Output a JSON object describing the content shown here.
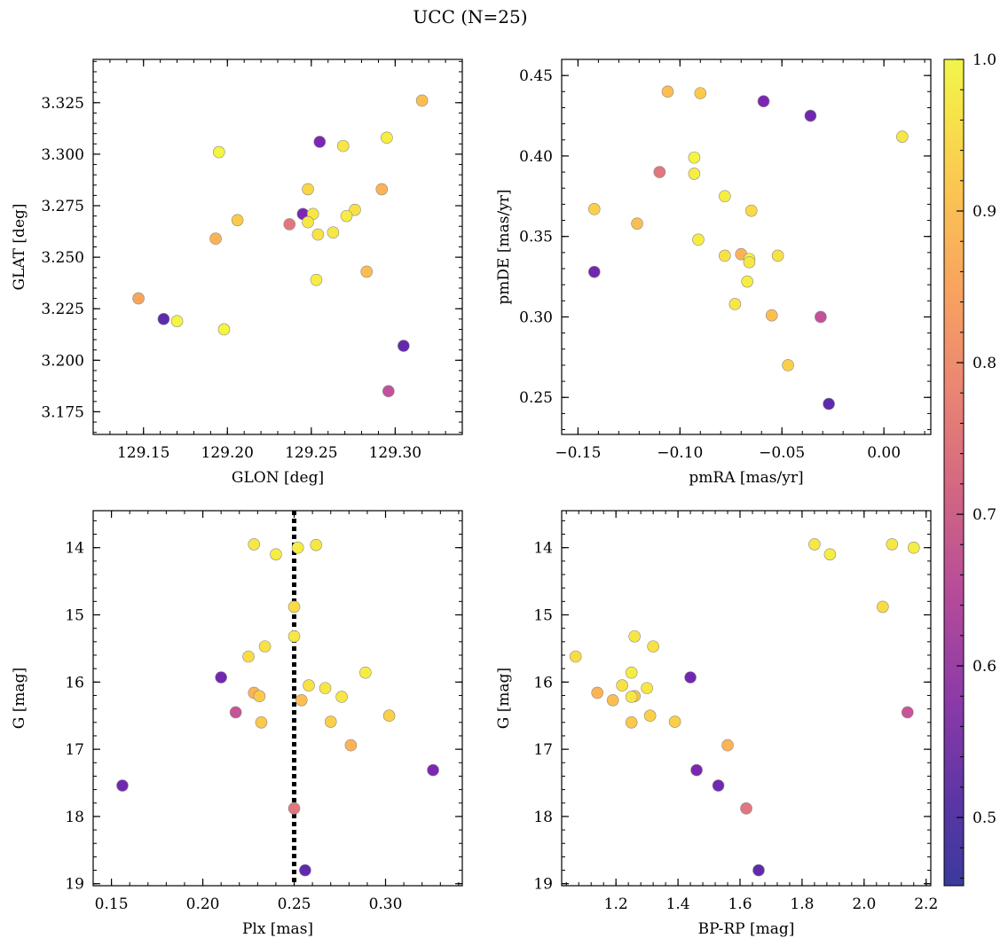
{
  "figure": {
    "title": "UCC (N=25)"
  },
  "colorbar": {
    "colormap": "plasma",
    "range": [
      0.455,
      1.0
    ],
    "ticks": [
      0.5,
      0.6,
      0.7,
      0.8,
      0.9,
      1.0
    ],
    "tick_labels": [
      "0.5",
      "0.6",
      "0.7",
      "0.8",
      "0.9",
      "1.0"
    ]
  },
  "chart_data": [
    {
      "type": "scatter",
      "title": "",
      "xlabel": "GLON [deg]",
      "ylabel": "GLAT [deg]",
      "xlim": [
        129.12,
        129.34
      ],
      "ylim": [
        3.164,
        3.346
      ],
      "y_inverted": false,
      "xticks": [
        129.15,
        129.2,
        129.25,
        129.3
      ],
      "xtick_labels": [
        "129.15",
        "129.20",
        "129.25",
        "129.30"
      ],
      "yticks": [
        3.175,
        3.2,
        3.225,
        3.25,
        3.275,
        3.3,
        3.325
      ],
      "ytick_labels": [
        "3.175",
        "3.200",
        "3.225",
        "3.250",
        "3.275",
        "3.300",
        "3.325"
      ],
      "grid": false,
      "points": [
        {
          "x": 129.316,
          "y": 3.326,
          "c": 0.9
        },
        {
          "x": 129.255,
          "y": 3.306,
          "c": 0.52
        },
        {
          "x": 129.269,
          "y": 3.304,
          "c": 0.97
        },
        {
          "x": 129.295,
          "y": 3.308,
          "c": 0.98
        },
        {
          "x": 129.195,
          "y": 3.301,
          "c": 0.99
        },
        {
          "x": 129.248,
          "y": 3.283,
          "c": 0.94
        },
        {
          "x": 129.292,
          "y": 3.283,
          "c": 0.88
        },
        {
          "x": 129.245,
          "y": 3.271,
          "c": 0.52
        },
        {
          "x": 129.251,
          "y": 3.271,
          "c": 0.97
        },
        {
          "x": 129.276,
          "y": 3.273,
          "c": 0.96
        },
        {
          "x": 129.271,
          "y": 3.27,
          "c": 0.98
        },
        {
          "x": 129.206,
          "y": 3.268,
          "c": 0.92
        },
        {
          "x": 129.248,
          "y": 3.267,
          "c": 0.97
        },
        {
          "x": 129.237,
          "y": 3.266,
          "c": 0.75
        },
        {
          "x": 129.254,
          "y": 3.261,
          "c": 0.96
        },
        {
          "x": 129.263,
          "y": 3.262,
          "c": 0.97
        },
        {
          "x": 129.193,
          "y": 3.259,
          "c": 0.88
        },
        {
          "x": 129.283,
          "y": 3.243,
          "c": 0.9
        },
        {
          "x": 129.253,
          "y": 3.239,
          "c": 0.98
        },
        {
          "x": 129.147,
          "y": 3.23,
          "c": 0.85
        },
        {
          "x": 129.162,
          "y": 3.22,
          "c": 0.47
        },
        {
          "x": 129.17,
          "y": 3.219,
          "c": 0.99
        },
        {
          "x": 129.198,
          "y": 3.215,
          "c": 0.99
        },
        {
          "x": 129.305,
          "y": 3.207,
          "c": 0.48
        },
        {
          "x": 129.296,
          "y": 3.185,
          "c": 0.66
        }
      ]
    },
    {
      "type": "scatter",
      "title": "",
      "xlabel": "pmRA [mas/yr]",
      "ylabel": "pmDE [mas/yr]",
      "xlim": [
        -0.158,
        0.023
      ],
      "ylim": [
        0.227,
        0.46
      ],
      "y_inverted": false,
      "xticks": [
        -0.15,
        -0.1,
        -0.05,
        0.0
      ],
      "xtick_labels": [
        "−0.15",
        "−0.10",
        "−0.05",
        "0.00"
      ],
      "yticks": [
        0.25,
        0.3,
        0.35,
        0.4,
        0.45
      ],
      "ytick_labels": [
        "0.25",
        "0.30",
        "0.35",
        "0.40",
        "0.45"
      ],
      "grid": false,
      "points": [
        {
          "x": -0.106,
          "y": 0.44,
          "c": 0.9
        },
        {
          "x": -0.09,
          "y": 0.439,
          "c": 0.92
        },
        {
          "x": -0.059,
          "y": 0.434,
          "c": 0.52
        },
        {
          "x": -0.036,
          "y": 0.425,
          "c": 0.5
        },
        {
          "x": 0.009,
          "y": 0.412,
          "c": 0.97
        },
        {
          "x": -0.093,
          "y": 0.399,
          "c": 0.99
        },
        {
          "x": -0.11,
          "y": 0.39,
          "c": 0.75
        },
        {
          "x": -0.093,
          "y": 0.389,
          "c": 0.98
        },
        {
          "x": -0.078,
          "y": 0.375,
          "c": 0.98
        },
        {
          "x": -0.142,
          "y": 0.367,
          "c": 0.93
        },
        {
          "x": -0.065,
          "y": 0.366,
          "c": 0.95
        },
        {
          "x": -0.121,
          "y": 0.358,
          "c": 0.9
        },
        {
          "x": -0.091,
          "y": 0.348,
          "c": 0.98
        },
        {
          "x": -0.078,
          "y": 0.338,
          "c": 0.96
        },
        {
          "x": -0.07,
          "y": 0.339,
          "c": 0.88
        },
        {
          "x": -0.066,
          "y": 0.336,
          "c": 0.99
        },
        {
          "x": -0.066,
          "y": 0.334,
          "c": 0.97
        },
        {
          "x": -0.052,
          "y": 0.338,
          "c": 0.96
        },
        {
          "x": -0.142,
          "y": 0.328,
          "c": 0.5
        },
        {
          "x": -0.067,
          "y": 0.322,
          "c": 0.98
        },
        {
          "x": -0.073,
          "y": 0.308,
          "c": 0.97
        },
        {
          "x": -0.055,
          "y": 0.301,
          "c": 0.9
        },
        {
          "x": -0.031,
          "y": 0.3,
          "c": 0.66
        },
        {
          "x": -0.047,
          "y": 0.27,
          "c": 0.93
        },
        {
          "x": -0.027,
          "y": 0.246,
          "c": 0.47
        }
      ]
    },
    {
      "type": "scatter",
      "title": "",
      "xlabel": "Plx [mas]",
      "ylabel": "G [mag]",
      "xlim": [
        0.14,
        0.342
      ],
      "ylim": [
        19.03,
        13.45
      ],
      "y_inverted": true,
      "xticks": [
        0.15,
        0.2,
        0.25,
        0.3
      ],
      "xtick_labels": [
        "0.15",
        "0.20",
        "0.25",
        "0.30"
      ],
      "yticks": [
        14,
        15,
        16,
        17,
        18,
        19
      ],
      "ytick_labels": [
        "14",
        "15",
        "16",
        "17",
        "18",
        "19"
      ],
      "grid": false,
      "reference_line": {
        "x": 0.25,
        "style": "dotted"
      },
      "points": [
        {
          "x": 0.228,
          "y": 13.95,
          "c": 0.97
        },
        {
          "x": 0.262,
          "y": 13.96,
          "c": 0.97
        },
        {
          "x": 0.252,
          "y": 14.0,
          "c": 0.98
        },
        {
          "x": 0.24,
          "y": 14.1,
          "c": 0.98
        },
        {
          "x": 0.25,
          "y": 14.88,
          "c": 0.95
        },
        {
          "x": 0.25,
          "y": 15.32,
          "c": 0.97
        },
        {
          "x": 0.234,
          "y": 15.47,
          "c": 0.96
        },
        {
          "x": 0.225,
          "y": 15.62,
          "c": 0.95
        },
        {
          "x": 0.289,
          "y": 15.86,
          "c": 0.98
        },
        {
          "x": 0.21,
          "y": 15.93,
          "c": 0.5
        },
        {
          "x": 0.258,
          "y": 16.05,
          "c": 0.96
        },
        {
          "x": 0.267,
          "y": 16.09,
          "c": 0.97
        },
        {
          "x": 0.228,
          "y": 16.16,
          "c": 0.88
        },
        {
          "x": 0.231,
          "y": 16.21,
          "c": 0.92
        },
        {
          "x": 0.276,
          "y": 16.22,
          "c": 0.97
        },
        {
          "x": 0.254,
          "y": 16.27,
          "c": 0.9
        },
        {
          "x": 0.218,
          "y": 16.45,
          "c": 0.67
        },
        {
          "x": 0.302,
          "y": 16.5,
          "c": 0.93
        },
        {
          "x": 0.27,
          "y": 16.59,
          "c": 0.93
        },
        {
          "x": 0.232,
          "y": 16.6,
          "c": 0.92
        },
        {
          "x": 0.281,
          "y": 16.94,
          "c": 0.88
        },
        {
          "x": 0.326,
          "y": 17.31,
          "c": 0.52
        },
        {
          "x": 0.156,
          "y": 17.54,
          "c": 0.5
        },
        {
          "x": 0.25,
          "y": 17.88,
          "c": 0.75
        },
        {
          "x": 0.256,
          "y": 18.8,
          "c": 0.47
        }
      ]
    },
    {
      "type": "scatter",
      "title": "",
      "xlabel": "BP-RP [mag]",
      "ylabel": "G [mag]",
      "xlim": [
        1.025,
        2.215
      ],
      "ylim": [
        19.03,
        13.45
      ],
      "y_inverted": true,
      "xticks": [
        1.2,
        1.4,
        1.6,
        1.8,
        2.0,
        2.2
      ],
      "xtick_labels": [
        "1.2",
        "1.4",
        "1.6",
        "1.8",
        "2.0",
        "2.2"
      ],
      "yticks": [
        14,
        15,
        16,
        17,
        18,
        19
      ],
      "ytick_labels": [
        "14",
        "15",
        "16",
        "17",
        "18",
        "19"
      ],
      "grid": false,
      "points": [
        {
          "x": 1.84,
          "y": 13.95,
          "c": 0.97
        },
        {
          "x": 2.09,
          "y": 13.95,
          "c": 0.97
        },
        {
          "x": 2.16,
          "y": 14.0,
          "c": 0.98
        },
        {
          "x": 1.89,
          "y": 14.1,
          "c": 0.98
        },
        {
          "x": 2.06,
          "y": 14.88,
          "c": 0.95
        },
        {
          "x": 1.26,
          "y": 15.32,
          "c": 0.97
        },
        {
          "x": 1.32,
          "y": 15.47,
          "c": 0.96
        },
        {
          "x": 1.07,
          "y": 15.62,
          "c": 0.95
        },
        {
          "x": 1.25,
          "y": 15.86,
          "c": 0.98
        },
        {
          "x": 1.44,
          "y": 15.93,
          "c": 0.5
        },
        {
          "x": 1.22,
          "y": 16.05,
          "c": 0.96
        },
        {
          "x": 1.3,
          "y": 16.09,
          "c": 0.97
        },
        {
          "x": 1.14,
          "y": 16.16,
          "c": 0.88
        },
        {
          "x": 1.26,
          "y": 16.21,
          "c": 0.92
        },
        {
          "x": 1.25,
          "y": 16.22,
          "c": 0.97
        },
        {
          "x": 1.19,
          "y": 16.27,
          "c": 0.9
        },
        {
          "x": 2.14,
          "y": 16.45,
          "c": 0.67
        },
        {
          "x": 1.31,
          "y": 16.5,
          "c": 0.93
        },
        {
          "x": 1.39,
          "y": 16.59,
          "c": 0.93
        },
        {
          "x": 1.25,
          "y": 16.6,
          "c": 0.92
        },
        {
          "x": 1.56,
          "y": 16.94,
          "c": 0.88
        },
        {
          "x": 1.46,
          "y": 17.31,
          "c": 0.52
        },
        {
          "x": 1.53,
          "y": 17.54,
          "c": 0.5
        },
        {
          "x": 1.62,
          "y": 17.88,
          "c": 0.75
        },
        {
          "x": 1.66,
          "y": 18.8,
          "c": 0.47
        }
      ]
    }
  ]
}
